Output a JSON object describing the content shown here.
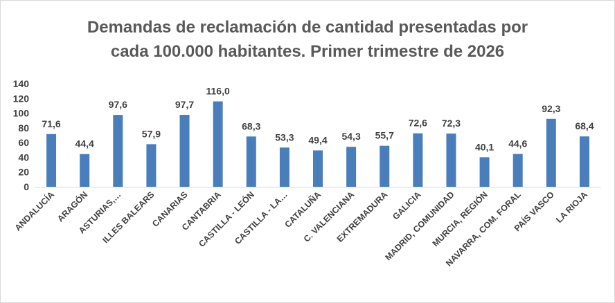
{
  "chart_data": {
    "type": "bar",
    "title_lines": [
      "Demandas de reclamación de cantidad presentadas por",
      "cada 100.000 habitantes. Primer trimestre de 2026"
    ],
    "xlabel": "",
    "ylabel": "",
    "ylim": [
      0,
      140
    ],
    "yticks": [
      0,
      20,
      40,
      60,
      80,
      100,
      120,
      140
    ],
    "grid": false,
    "bar_color": "#4a7ebb",
    "categories": [
      "ANDALUCÍA",
      "ARAGÓN",
      "ASTURIAS,…",
      "ILLES BALEARS",
      "CANARIAS",
      "CANTABRIA",
      "CASTILLA - LEÓN",
      "CASTILLA - LA…",
      "CATALUÑA",
      "C. VALENCIANA",
      "EXTREMADURA",
      "GALICIA",
      "MADRID, COMUNIDAD",
      "MURCIA, REGIÓN",
      "NAVARRA, COM. FORAL",
      "PAÍS VASCO",
      "LA RIOJA"
    ],
    "values": [
      71.6,
      44.4,
      97.6,
      57.9,
      97.7,
      116.0,
      68.3,
      53.3,
      49.4,
      54.3,
      55.7,
      72.6,
      72.3,
      40.1,
      44.6,
      92.3,
      68.4
    ],
    "data_labels": [
      "71,6",
      "44,4",
      "97,6",
      "57,9",
      "97,7",
      "116,0",
      "68,3",
      "53,3",
      "49,4",
      "54,3",
      "55,7",
      "72,6",
      "72,3",
      "40,1",
      "44,6",
      "92,3",
      "68,4"
    ]
  }
}
